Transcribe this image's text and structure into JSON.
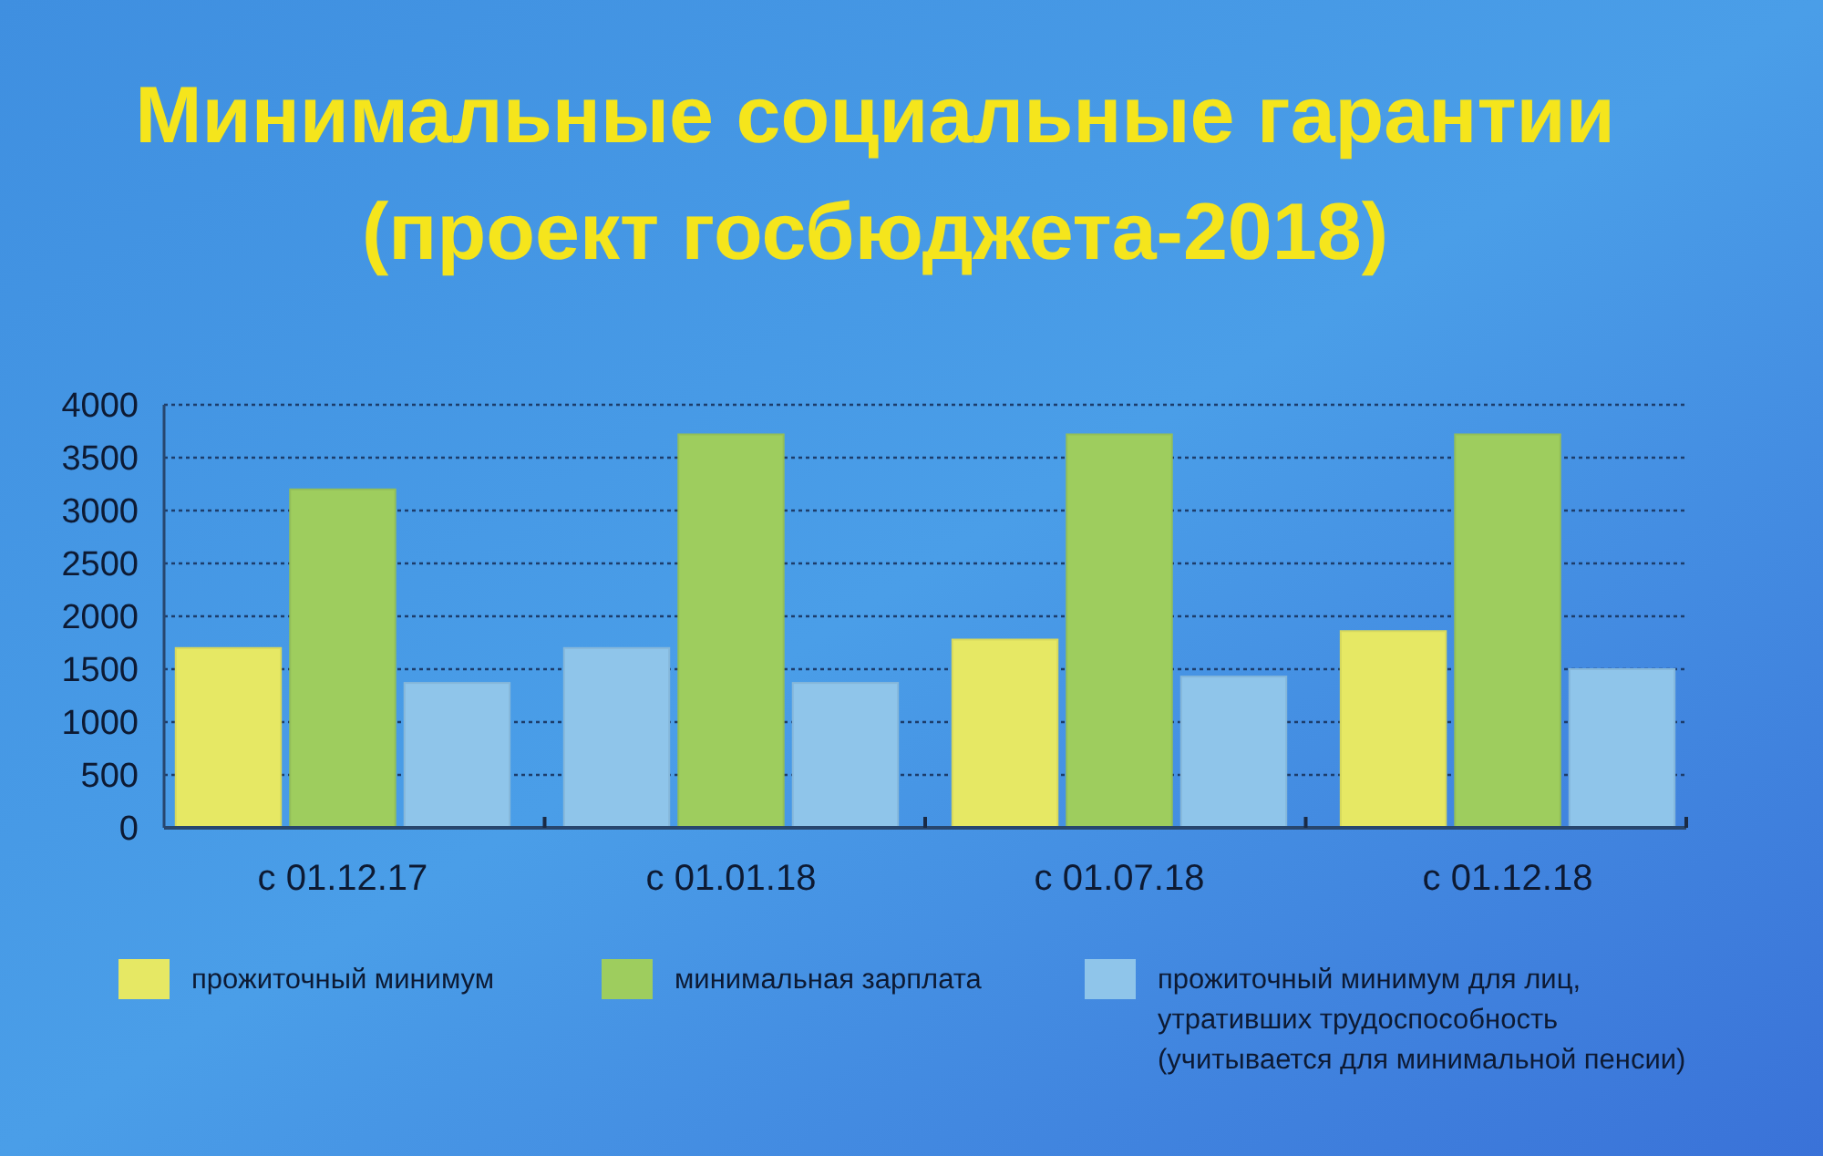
{
  "chart_data": {
    "type": "bar",
    "title": "Минимальные социальные гарантии",
    "subtitle": "(проект госбюджета-2018)",
    "categories": [
      "с 01.12.17",
      "с 01.01.18",
      "с 01.07.18",
      "с 01.12.18"
    ],
    "series": [
      {
        "name": "прожиточный минимум",
        "color": "#e6e864",
        "colors": [
          "#e6e864",
          "#8fc5ea",
          "#e6e864",
          "#e6e864"
        ],
        "values": [
          1700,
          1700,
          1780,
          1860
        ]
      },
      {
        "name": "минимальная зарплата",
        "color": "#9ecd5e",
        "values": [
          3200,
          3720,
          3720,
          3720
        ]
      },
      {
        "name": "прожиточный минимум для лиц, утративших трудоспособность (учитывается для минимальной пенсии)",
        "color": "#8fc5ea",
        "values": [
          1370,
          1370,
          1430,
          1500
        ]
      }
    ],
    "ylim": [
      0,
      4000
    ],
    "yticks": [
      0,
      500,
      1000,
      1500,
      2000,
      2500,
      3000,
      3500,
      4000
    ],
    "grid": "y",
    "legend": "bottom"
  }
}
